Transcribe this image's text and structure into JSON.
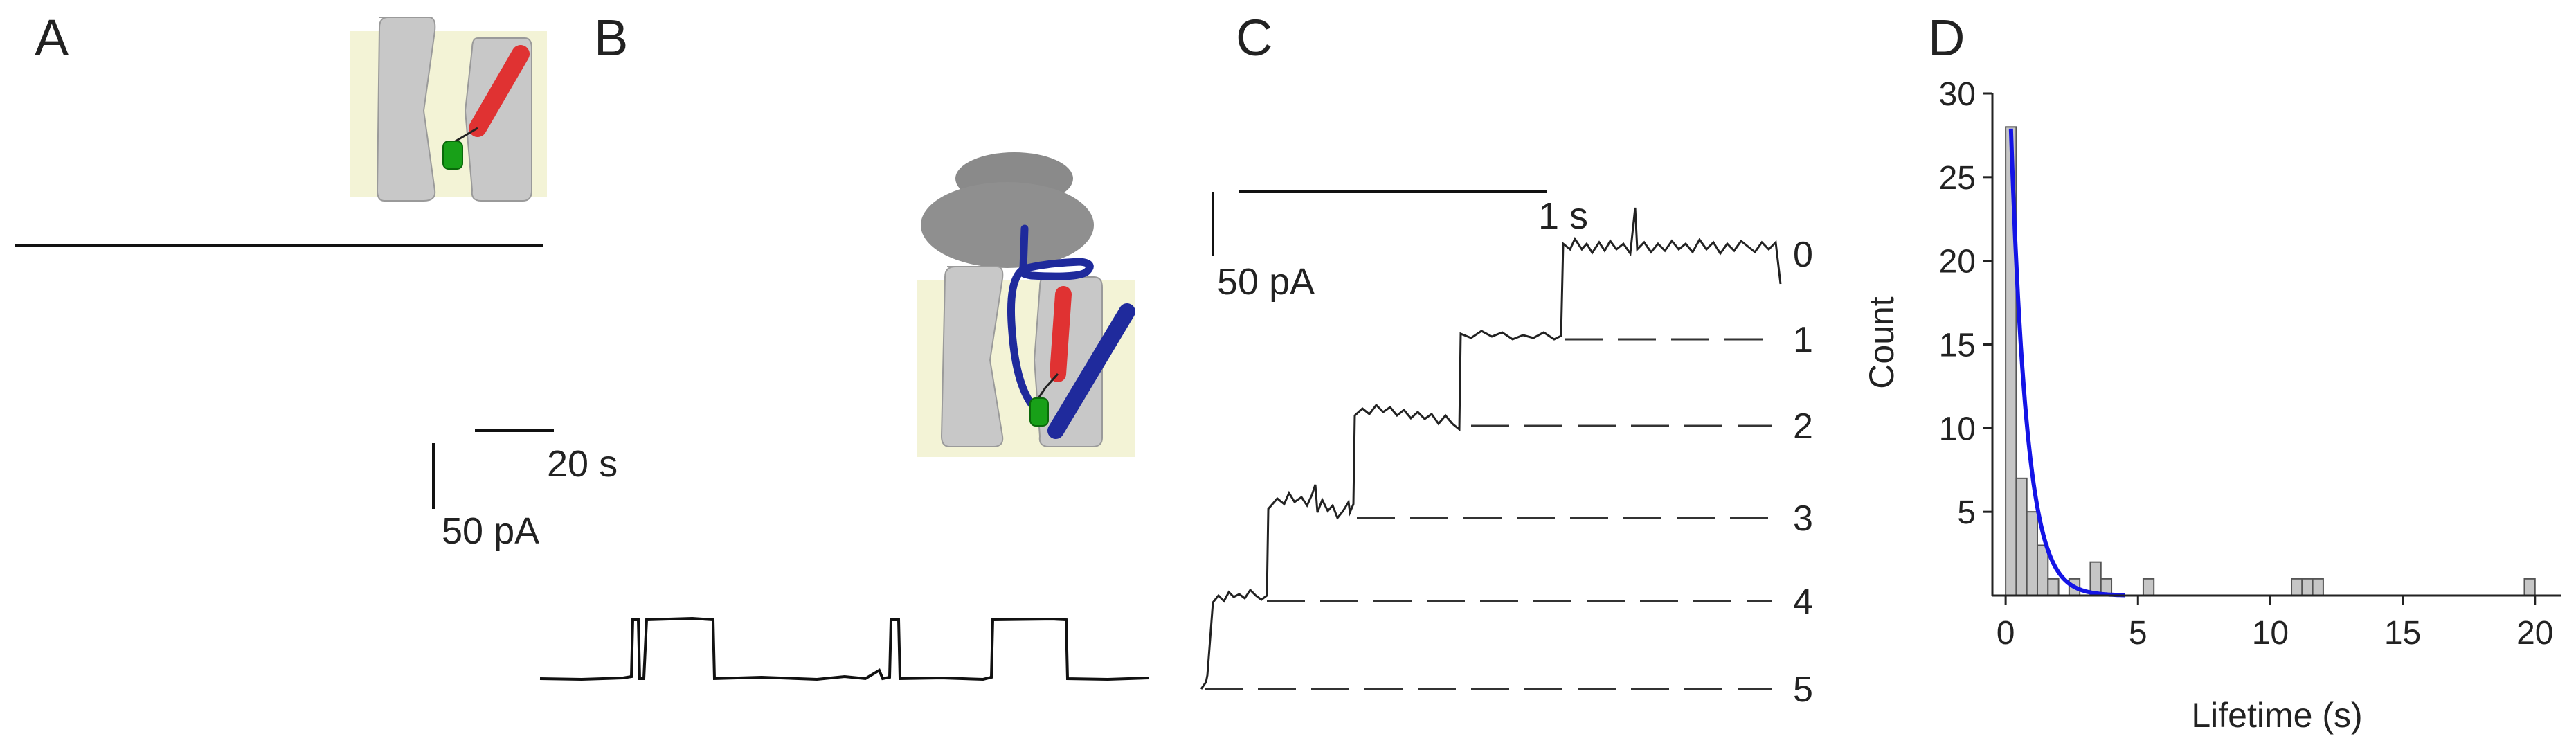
{
  "panels": {
    "a": {
      "letter": "A"
    },
    "b": {
      "letter": "B",
      "scale_time": "20 s",
      "scale_current": "50 pA"
    },
    "c": {
      "letter": "C",
      "scale_time": "1 s",
      "scale_current": "50 pA",
      "levels": [
        "0",
        "1",
        "2",
        "3",
        "4",
        "5"
      ]
    },
    "d": {
      "letter": "D"
    }
  },
  "colors": {
    "trace": "#111111",
    "channel_gray": "#c8c8c8",
    "membrane_yellow": "#f3f3d6",
    "red_helix": "#e03232",
    "green_domain": "#18a018",
    "blue_chain": "#1f2a9c",
    "fit_blue": "#1414e6",
    "bar_gray": "#c6c6c6"
  },
  "chart_data": [
    {
      "type": "histogram",
      "panel": "D",
      "xlabel": "Lifetime (s)",
      "ylabel": "Count",
      "xlim": [
        -0.5,
        21
      ],
      "ylim": [
        0,
        30
      ],
      "xticks": [
        0,
        5,
        10,
        15,
        20
      ],
      "yticks": [
        5,
        10,
        15,
        20,
        25,
        30
      ],
      "bin_width": 0.4,
      "bins": [
        {
          "x": 0.0,
          "count": 28
        },
        {
          "x": 0.4,
          "count": 7
        },
        {
          "x": 0.8,
          "count": 5
        },
        {
          "x": 1.2,
          "count": 3
        },
        {
          "x": 1.6,
          "count": 1
        },
        {
          "x": 2.4,
          "count": 1
        },
        {
          "x": 3.2,
          "count": 2
        },
        {
          "x": 3.6,
          "count": 1
        },
        {
          "x": 5.2,
          "count": 1
        },
        {
          "x": 10.8,
          "count": 1
        },
        {
          "x": 11.2,
          "count": 1
        },
        {
          "x": 11.6,
          "count": 1
        },
        {
          "x": 19.6,
          "count": 1
        }
      ],
      "fit": {
        "type": "exponential",
        "amplitude": 31,
        "tau": 0.6,
        "x_start": 0.2,
        "x_end": 4.5
      }
    }
  ]
}
